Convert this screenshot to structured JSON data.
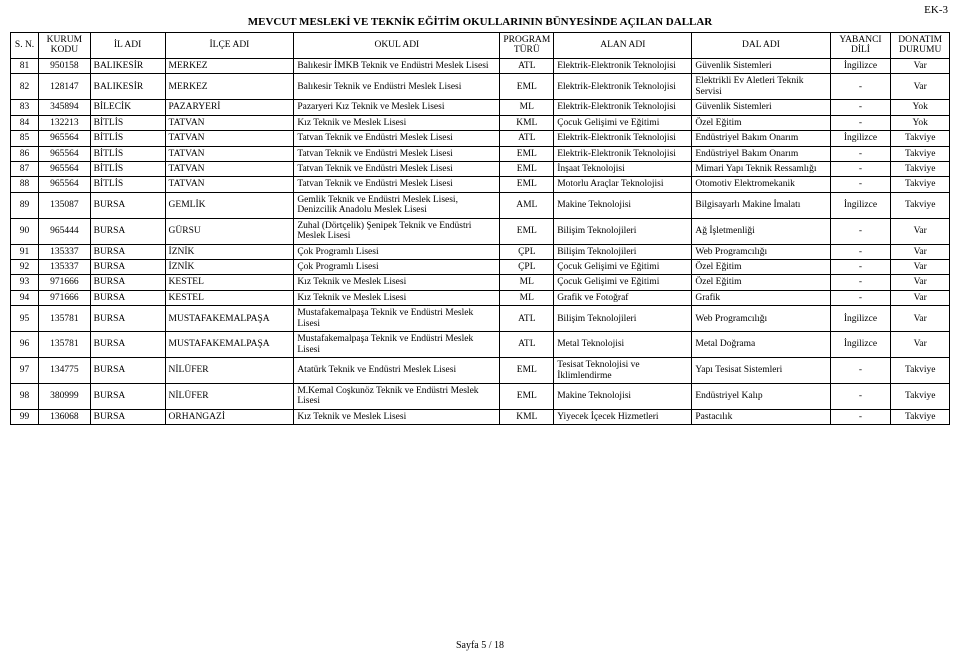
{
  "page": {
    "ek": "EK-3",
    "title": "MEVCUT MESLEKİ VE TEKNİK EĞİTİM OKULLARININ BÜNYESİNDE AÇILAN DALLAR",
    "footer": "Sayfa 5 / 18"
  },
  "columns": [
    "S. N.",
    "KURUM KODU",
    "İL ADI",
    "İLÇE ADI",
    "OKUL ADI",
    "PROGRAM TÜRÜ",
    "ALAN ADI",
    "DAL ADI",
    "YABANCI DİLİ",
    "DONATIM DURUMU"
  ],
  "rows": [
    {
      "sn": "81",
      "kurum": "950158",
      "il": "BALIKESİR",
      "ilce": "MERKEZ",
      "okul": "Balıkesir İMKB Teknik ve Endüstri Meslek Lisesi",
      "prog": "ATL",
      "alan": "Elektrik-Elektronik Teknolojisi",
      "dal": "Güvenlik Sistemleri",
      "dil": "İngilizce",
      "don": "Var"
    },
    {
      "sn": "82",
      "kurum": "128147",
      "il": "BALIKESİR",
      "ilce": "MERKEZ",
      "okul": "Balıkesir Teknik ve Endüstri Meslek Lisesi",
      "prog": "EML",
      "alan": "Elektrik-Elektronik Teknolojisi",
      "dal": "Elektrikli Ev Aletleri Teknik Servisi",
      "dil": "-",
      "don": "Var"
    },
    {
      "sn": "83",
      "kurum": "345894",
      "il": "BİLECİK",
      "ilce": "PAZARYERİ",
      "okul": "Pazaryeri Kız Teknik ve Meslek Lisesi",
      "prog": "ML",
      "alan": "Elektrik-Elektronik Teknolojisi",
      "dal": "Güvenlik Sistemleri",
      "dil": "-",
      "don": "Yok"
    },
    {
      "sn": "84",
      "kurum": "132213",
      "il": "BİTLİS",
      "ilce": "TATVAN",
      "okul": "Kız Teknik ve Meslek Lisesi",
      "prog": "KML",
      "alan": "Çocuk Gelişimi ve Eğitimi",
      "dal": "Özel Eğitim",
      "dil": "-",
      "don": "Yok"
    },
    {
      "sn": "85",
      "kurum": "965564",
      "il": "BİTLİS",
      "ilce": "TATVAN",
      "okul": "Tatvan Teknik ve Endüstri Meslek Lisesi",
      "prog": "ATL",
      "alan": "Elektrik-Elektronik Teknolojisi",
      "dal": "Endüstriyel Bakım Onarım",
      "dil": "İngilizce",
      "don": "Takviye"
    },
    {
      "sn": "86",
      "kurum": "965564",
      "il": "BİTLİS",
      "ilce": "TATVAN",
      "okul": "Tatvan Teknik ve Endüstri Meslek Lisesi",
      "prog": "EML",
      "alan": "Elektrik-Elektronik Teknolojisi",
      "dal": "Endüstriyel Bakım Onarım",
      "dil": "-",
      "don": "Takviye"
    },
    {
      "sn": "87",
      "kurum": "965564",
      "il": "BİTLİS",
      "ilce": "TATVAN",
      "okul": "Tatvan Teknik ve Endüstri Meslek Lisesi",
      "prog": "EML",
      "alan": "İnşaat Teknolojisi",
      "dal": "Mimari Yapı Teknik Ressamlığı",
      "dil": "-",
      "don": "Takviye"
    },
    {
      "sn": "88",
      "kurum": "965564",
      "il": "BİTLİS",
      "ilce": "TATVAN",
      "okul": "Tatvan Teknik ve Endüstri Meslek Lisesi",
      "prog": "EML",
      "alan": "Motorlu Araçlar Teknolojisi",
      "dal": "Otomotiv Elektromekanik",
      "dil": "-",
      "don": "Takviye"
    },
    {
      "sn": "89",
      "kurum": "135087",
      "il": "BURSA",
      "ilce": "GEMLİK",
      "okul": "Gemlik Teknik ve Endüstri Meslek Lisesi, Denizcilik Anadolu Meslek Lisesi",
      "prog": "AML",
      "alan": "Makine Teknolojisi",
      "dal": "Bilgisayarlı Makine İmalatı",
      "dil": "İngilizce",
      "don": "Takviye"
    },
    {
      "sn": "90",
      "kurum": "965444",
      "il": "BURSA",
      "ilce": "GÜRSU",
      "okul": "Zuhal (Dörtçelik) Şenipek Teknik ve Endüstri Meslek Lisesi",
      "prog": "EML",
      "alan": "Bilişim Teknolojileri",
      "dal": "Ağ İşletmenliği",
      "dil": "-",
      "don": "Var"
    },
    {
      "sn": "91",
      "kurum": "135337",
      "il": "BURSA",
      "ilce": "İZNİK",
      "okul": "Çok Programlı Lisesi",
      "prog": "ÇPL",
      "alan": "Bilişim Teknolojileri",
      "dal": "Web Programcılığı",
      "dil": "-",
      "don": "Var"
    },
    {
      "sn": "92",
      "kurum": "135337",
      "il": "BURSA",
      "ilce": "İZNİK",
      "okul": "Çok Programlı Lisesi",
      "prog": "ÇPL",
      "alan": "Çocuk Gelişimi ve Eğitimi",
      "dal": "Özel Eğitim",
      "dil": "-",
      "don": "Var"
    },
    {
      "sn": "93",
      "kurum": "971666",
      "il": "BURSA",
      "ilce": "KESTEL",
      "okul": "Kız Teknik ve Meslek Lisesi",
      "prog": "ML",
      "alan": "Çocuk Gelişimi ve Eğitimi",
      "dal": "Özel Eğitim",
      "dil": "-",
      "don": "Var"
    },
    {
      "sn": "94",
      "kurum": "971666",
      "il": "BURSA",
      "ilce": "KESTEL",
      "okul": "Kız Teknik ve Meslek Lisesi",
      "prog": "ML",
      "alan": "Grafik ve Fotoğraf",
      "dal": "Grafik",
      "dil": "-",
      "don": "Var"
    },
    {
      "sn": "95",
      "kurum": "135781",
      "il": "BURSA",
      "ilce": "MUSTAFAKEMALPAŞA",
      "okul": "Mustafakemalpaşa Teknik ve Endüstri Meslek Lisesi",
      "prog": "ATL",
      "alan": "Bilişim Teknolojileri",
      "dal": "Web Programcılığı",
      "dil": "İngilizce",
      "don": "Var"
    },
    {
      "sn": "96",
      "kurum": "135781",
      "il": "BURSA",
      "ilce": "MUSTAFAKEMALPAŞA",
      "okul": "Mustafakemalpaşa Teknik ve Endüstri Meslek Lisesi",
      "prog": "ATL",
      "alan": "Metal Teknolojisi",
      "dal": "Metal Doğrama",
      "dil": "İngilizce",
      "don": "Var"
    },
    {
      "sn": "97",
      "kurum": "134775",
      "il": "BURSA",
      "ilce": "NİLÜFER",
      "okul": "Atatürk Teknik ve Endüstri Meslek Lisesi",
      "prog": "EML",
      "alan": "Tesisat Teknolojisi ve İklimlendirme",
      "dal": "Yapı Tesisat Sistemleri",
      "dil": "-",
      "don": "Takviye"
    },
    {
      "sn": "98",
      "kurum": "380999",
      "il": "BURSA",
      "ilce": "NİLÜFER",
      "okul": "M.Kemal Coşkunöz Teknik ve Endüstri Meslek Lisesi",
      "prog": "EML",
      "alan": "Makine Teknolojisi",
      "dal": "Endüstriyel Kalıp",
      "dil": "-",
      "don": "Takviye"
    },
    {
      "sn": "99",
      "kurum": "136068",
      "il": "BURSA",
      "ilce": "ORHANGAZİ",
      "okul": "Kız Teknik ve Meslek Lisesi",
      "prog": "KML",
      "alan": "Yiyecek İçecek Hizmetleri",
      "dal": "Pastacılık",
      "dil": "-",
      "don": "Takviye"
    }
  ],
  "style": {
    "background_color": "#ffffff",
    "text_color": "#000000",
    "border_color": "#000000",
    "font_family": "Times New Roman",
    "title_fontsize": 11,
    "cell_fontsize": 9.5
  }
}
